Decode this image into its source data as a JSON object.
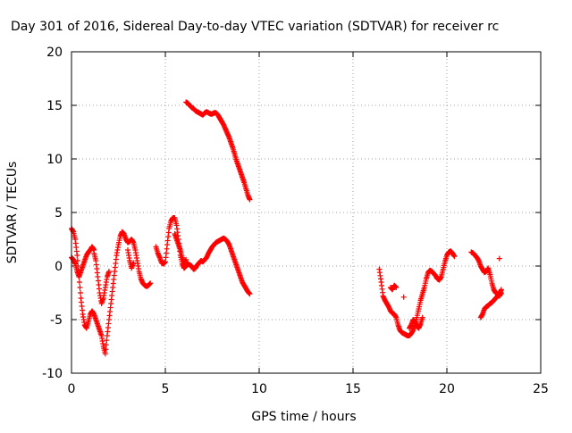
{
  "chart_data": {
    "type": "scatter",
    "title": "Day 301 of 2016, Sidereal Day-to-day VTEC variation (SDTVAR) for receiver rc",
    "xlabel": "GPS time / hours",
    "ylabel": "SDTVAR / TECUs",
    "xlim": [
      0,
      25
    ],
    "ylim": [
      -10,
      20
    ],
    "xticks": [
      0,
      5,
      10,
      15,
      20,
      25
    ],
    "yticks": [
      -10,
      -5,
      0,
      5,
      10,
      15,
      20
    ],
    "xtick_labels": [
      "0",
      "5",
      "10",
      "15",
      "20",
      "25"
    ],
    "ytick_labels": [
      "-10",
      "-5",
      "0",
      "5",
      "10",
      "15",
      "20"
    ],
    "grid": true,
    "marker": "+",
    "series": [
      {
        "name": "SDTVAR",
        "color": "#ff0000",
        "segments": [
          {
            "x": [
              0.0,
              0.1,
              0.2,
              0.3,
              0.4,
              0.5,
              0.6,
              0.7,
              0.8,
              0.9,
              1.0,
              1.1,
              1.2,
              1.3,
              1.4,
              1.5,
              1.6,
              1.7,
              1.8,
              1.9,
              2.0,
              2.1,
              2.2,
              2.3,
              2.4,
              2.5,
              2.6,
              2.7,
              2.8,
              2.9,
              3.0,
              3.1,
              3.2,
              3.3,
              3.4,
              3.5,
              3.6,
              3.7,
              3.8,
              3.9,
              4.0,
              4.1,
              4.2
            ],
            "y": [
              3.5,
              3.2,
              2.5,
              1.0,
              -1.0,
              -3.0,
              -4.5,
              -5.5,
              -5.8,
              -5.2,
              -4.5,
              -4.2,
              -4.5,
              -5.0,
              -5.5,
              -6.0,
              -6.5,
              -7.5,
              -8.2,
              -6.5,
              -5.0,
              -3.5,
              -2.0,
              -0.5,
              1.0,
              2.0,
              2.8,
              3.2,
              3.0,
              2.5,
              2.2,
              2.3,
              2.5,
              2.2,
              1.5,
              0.5,
              -0.5,
              -1.2,
              -1.6,
              -1.8,
              -1.9,
              -1.8,
              -1.6
            ]
          },
          {
            "x": [
              0.0,
              0.1,
              0.2,
              0.3,
              0.4,
              0.5,
              0.6,
              0.7,
              0.8,
              0.9,
              1.0,
              1.1,
              1.2
            ],
            "y": [
              0.8,
              0.6,
              0.2,
              -0.5,
              -1.0,
              -0.5,
              0.0,
              0.5,
              1.0,
              1.3,
              1.5,
              1.8,
              1.5
            ]
          },
          {
            "x": [
              1.2,
              1.3,
              1.4,
              1.5,
              1.6,
              1.7,
              1.8,
              1.9,
              2.0
            ],
            "y": [
              1.2,
              0.5,
              -1.0,
              -2.5,
              -3.5,
              -3.0,
              -2.0,
              -1.0,
              -0.5
            ]
          },
          {
            "x": [
              3.0,
              3.1,
              3.2,
              3.3
            ],
            "y": [
              1.5,
              0.5,
              -0.2,
              0.3
            ]
          },
          {
            "x": [
              4.5,
              4.6,
              4.7,
              4.8,
              4.9,
              5.0,
              5.1,
              5.2,
              5.3,
              5.4,
              5.5,
              5.6,
              5.7,
              5.8,
              5.9,
              6.0,
              6.1,
              6.2,
              6.3,
              6.4,
              6.5,
              6.6,
              6.7,
              6.8,
              6.9,
              7.0,
              7.1,
              7.2,
              7.3,
              7.4,
              7.5,
              7.6,
              7.7,
              7.8,
              7.9,
              8.0,
              8.1,
              8.2,
              8.3,
              8.4,
              8.5,
              8.6,
              8.7,
              8.8,
              8.9,
              9.0,
              9.1,
              9.2,
              9.3,
              9.4,
              9.5
            ],
            "y": [
              1.8,
              1.2,
              0.8,
              0.3,
              0.2,
              0.4,
              2.0,
              3.5,
              4.2,
              4.5,
              4.5,
              3.8,
              2.5,
              1.0,
              0.2,
              -0.2,
              0.0,
              0.2,
              0.1,
              0.0,
              -0.3,
              -0.2,
              0.1,
              0.3,
              0.5,
              0.4,
              0.6,
              0.8,
              1.2,
              1.5,
              1.8,
              2.0,
              2.2,
              2.3,
              2.4,
              2.5,
              2.6,
              2.5,
              2.3,
              2.0,
              1.5,
              1.0,
              0.5,
              0.0,
              -0.5,
              -1.0,
              -1.5,
              -1.8,
              -2.1,
              -2.4,
              -2.6
            ]
          },
          {
            "x": [
              5.5,
              5.6,
              5.7,
              5.8,
              5.9,
              6.0,
              6.1
            ],
            "y": [
              3.0,
              2.5,
              2.0,
              1.5,
              0.8,
              0.3,
              0.6
            ]
          },
          {
            "x": [
              6.1,
              6.2,
              6.3,
              6.4,
              6.5,
              6.6,
              6.7,
              6.8,
              6.9,
              7.0,
              7.1,
              7.2,
              7.3,
              7.4,
              7.5,
              7.6,
              7.7,
              7.8,
              7.9,
              8.0,
              8.1,
              8.2,
              8.3,
              8.4,
              8.5,
              8.6,
              8.7,
              8.8,
              8.9,
              9.0,
              9.1,
              9.2,
              9.3,
              9.4,
              9.5
            ],
            "y": [
              15.3,
              15.2,
              15.0,
              14.8,
              14.7,
              14.5,
              14.4,
              14.3,
              14.2,
              14.1,
              14.3,
              14.4,
              14.3,
              14.2,
              14.2,
              14.3,
              14.3,
              14.1,
              13.8,
              13.5,
              13.2,
              12.8,
              12.4,
              12.0,
              11.5,
              11.0,
              10.4,
              9.8,
              9.3,
              8.8,
              8.3,
              7.8,
              7.2,
              6.6,
              6.2
            ]
          },
          {
            "x": [
              16.4,
              16.5,
              16.6,
              16.7,
              16.8,
              16.9,
              17.0,
              17.1,
              17.2,
              17.3,
              17.4,
              17.5,
              17.6,
              17.7,
              17.8,
              17.9,
              18.0,
              18.1,
              18.2,
              18.3,
              18.4,
              18.5,
              18.6,
              18.7,
              18.8,
              18.9,
              19.0,
              19.1,
              19.2,
              19.3,
              19.4,
              19.5,
              19.6,
              19.7,
              19.8,
              19.9,
              20.0,
              20.1,
              20.2,
              20.3,
              20.4
            ],
            "y": [
              -0.3,
              -1.5,
              -2.8,
              -3.2,
              -3.5,
              -3.8,
              -4.2,
              -4.4,
              -4.5,
              -4.8,
              -5.5,
              -6.0,
              -6.2,
              -6.3,
              -6.4,
              -6.5,
              -6.5,
              -6.3,
              -6.0,
              -5.5,
              -4.8,
              -4.0,
              -3.2,
              -2.6,
              -2.0,
              -1.2,
              -0.6,
              -0.4,
              -0.5,
              -0.7,
              -0.9,
              -1.2,
              -1.3,
              -1.0,
              -0.3,
              0.4,
              1.0,
              1.3,
              1.4,
              1.2,
              0.9
            ]
          },
          {
            "x": [
              17.0,
              17.1,
              17.2,
              17.3
            ],
            "y": [
              -2.0,
              -2.2,
              -1.8,
              -2.0
            ]
          },
          {
            "x": [
              18.0,
              18.1,
              18.2,
              18.3,
              18.4,
              18.5,
              18.6,
              18.7
            ],
            "y": [
              -5.8,
              -5.5,
              -5.0,
              -5.2,
              -5.6,
              -5.8,
              -5.4,
              -4.8
            ]
          },
          {
            "x": [
              17.7
            ],
            "y": [
              -2.9
            ]
          },
          {
            "x": [
              21.3,
              21.4,
              21.5,
              21.6,
              21.7,
              21.8,
              21.9,
              22.0,
              22.1,
              22.2,
              22.3,
              22.4,
              22.5,
              22.6,
              22.7,
              22.8,
              22.9
            ],
            "y": [
              1.3,
              1.2,
              1.0,
              0.8,
              0.5,
              0.0,
              -0.3,
              -0.6,
              -0.5,
              -0.2,
              -0.8,
              -1.6,
              -2.2,
              -2.5,
              -2.6,
              -2.8,
              -2.5
            ]
          },
          {
            "x": [
              21.8,
              21.9,
              22.0,
              22.1,
              22.2,
              22.3,
              22.4,
              22.5,
              22.6,
              22.7,
              22.8,
              22.9
            ],
            "y": [
              -4.8,
              -4.5,
              -4.0,
              -3.8,
              -3.7,
              -3.5,
              -3.4,
              -3.2,
              -3.0,
              -2.8,
              -2.6,
              -2.2
            ]
          },
          {
            "x": [
              22.8
            ],
            "y": [
              0.7
            ]
          }
        ]
      }
    ]
  }
}
